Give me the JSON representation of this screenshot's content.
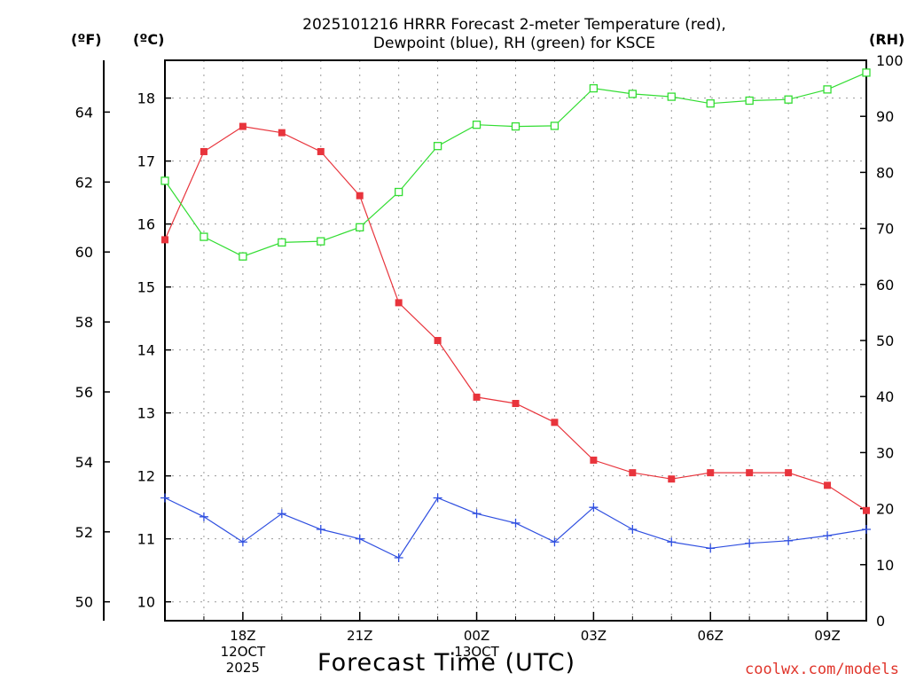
{
  "chart_data": {
    "type": "line",
    "title_line1": "2025101216 HRRR Forecast 2-meter Temperature (red),",
    "title_line2": "Dewpoint (blue), RH (green) for KSCE",
    "xlabel": "Forecast Time (UTC)",
    "unit_f": "(ºF)",
    "unit_c": "(ºC)",
    "unit_rh": "(RH)",
    "credit": "coolwx.com/models",
    "hours": [
      16,
      17,
      18,
      19,
      20,
      21,
      22,
      23,
      24,
      25,
      26,
      27,
      28,
      29,
      30,
      31,
      32,
      33,
      34
    ],
    "x_ticks": [
      {
        "hour": 18,
        "lines": [
          "18Z",
          "12OCT",
          "2025"
        ]
      },
      {
        "hour": 21,
        "lines": [
          "21Z"
        ]
      },
      {
        "hour": 24,
        "lines": [
          "00Z",
          "13OCT"
        ]
      },
      {
        "hour": 27,
        "lines": [
          "03Z"
        ]
      },
      {
        "hour": 30,
        "lines": [
          "06Z"
        ]
      },
      {
        "hour": 33,
        "lines": [
          "09Z"
        ]
      }
    ],
    "c_axis": {
      "min": 9.7,
      "max": 18.6,
      "ticks": [
        10,
        11,
        12,
        13,
        14,
        15,
        16,
        17,
        18
      ]
    },
    "f_ticks": [
      50,
      52,
      54,
      56,
      58,
      60,
      62,
      64
    ],
    "rh_axis": {
      "min": 0,
      "max": 100,
      "ticks": [
        0,
        10,
        20,
        30,
        40,
        50,
        60,
        70,
        80,
        90,
        100
      ]
    },
    "series": [
      {
        "name": "Temperature",
        "units": "°C",
        "color": "#e8343c",
        "marker": "filled-square",
        "values": [
          15.75,
          17.15,
          17.55,
          17.45,
          17.15,
          16.45,
          14.75,
          14.15,
          13.25,
          13.15,
          12.85,
          12.25,
          12.05,
          11.95,
          12.05,
          12.05,
          12.05,
          11.85,
          11.45
        ]
      },
      {
        "name": "Dewpoint",
        "units": "°C",
        "color": "#2f4fe0",
        "marker": "plus",
        "values": [
          11.65,
          11.35,
          10.95,
          11.4,
          11.15,
          11.0,
          10.7,
          11.65,
          11.4,
          11.25,
          10.95,
          11.5,
          11.15,
          10.95,
          10.85,
          10.93,
          10.97,
          11.05,
          11.15
        ]
      },
      {
        "name": "RH",
        "units": "%",
        "color": "#33dd33",
        "marker": "open-square",
        "values": [
          78.5,
          68.5,
          65.0,
          67.5,
          67.7,
          70.2,
          76.5,
          84.7,
          88.5,
          88.2,
          88.3,
          95.0,
          94.0,
          93.5,
          92.3,
          92.8,
          93.0,
          94.8,
          97.8
        ]
      }
    ]
  }
}
